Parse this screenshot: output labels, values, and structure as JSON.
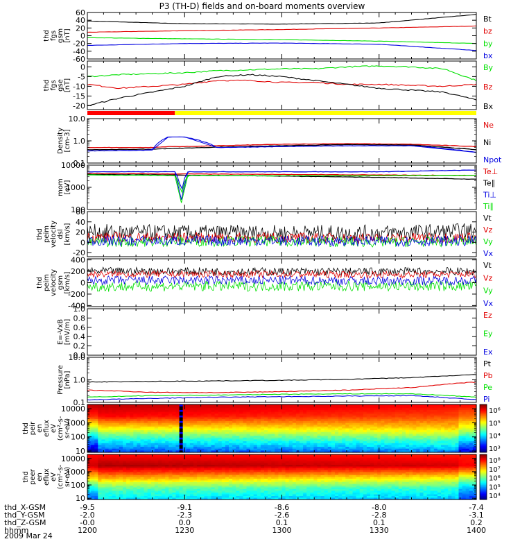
{
  "title": "P3 (TH-D) fields and on-board moments overview",
  "date_label": "2009 Mar 24",
  "colors": {
    "black": "#000000",
    "red": "#e00000",
    "green": "#00e000",
    "blue": "#0000e0",
    "yellow": "#ffff00",
    "ramp_red": "#ff0000"
  },
  "chart_data": [
    {
      "id": "fgs_gsm",
      "type": "line",
      "ylabel": [
        "thd",
        "fgs",
        "gsm",
        "[nT]"
      ],
      "ylim": [
        -60,
        60
      ],
      "yticks": [
        "60",
        "40",
        "20",
        "0",
        "-20",
        "-40",
        "-60"
      ],
      "ytick_values": [
        60,
        40,
        20,
        0,
        -20,
        -40,
        -60
      ],
      "x": [
        0,
        30,
        60,
        90,
        120
      ],
      "series": [
        {
          "name": "Bt",
          "color": "#000000",
          "values": [
            38,
            31,
            30,
            33,
            55
          ]
        },
        {
          "name": "bz",
          "color": "#e00000",
          "values": [
            9,
            13,
            16,
            20,
            25
          ]
        },
        {
          "name": "by",
          "color": "#00e000",
          "values": [
            -5,
            -8,
            -10,
            -14,
            -20
          ]
        },
        {
          "name": "bx",
          "color": "#0000e0",
          "values": [
            -25,
            -20,
            -19,
            -22,
            -38
          ]
        }
      ]
    },
    {
      "id": "fgs_gse",
      "type": "line",
      "ylabel": [
        "thd",
        "fgs",
        "gse",
        "[nT]"
      ],
      "ylim": [
        -22,
        3
      ],
      "yticks": [
        "0",
        "-5",
        "-10",
        "-15",
        "-20"
      ],
      "ytick_values": [
        0,
        -5,
        -10,
        -15,
        -20
      ],
      "x": [
        0,
        10,
        20,
        30,
        40,
        50,
        60,
        70,
        80,
        90,
        100,
        110,
        120
      ],
      "series": [
        {
          "name": "By",
          "color": "#00e000",
          "values": [
            -5,
            -4,
            -3.5,
            -3,
            -2,
            -1.5,
            -1,
            -1,
            0,
            0.5,
            0,
            -1,
            -7
          ]
        },
        {
          "name": "Bz",
          "color": "#e00000",
          "values": [
            -9,
            -11,
            -10,
            -9,
            -7,
            -7,
            -8,
            -8,
            -9,
            -9,
            -9.5,
            -10,
            -9
          ]
        },
        {
          "name": "Bx",
          "color": "#000000",
          "values": [
            -20,
            -16,
            -13,
            -10,
            -5,
            -4,
            -5,
            -7,
            -9,
            -11,
            -12,
            -13,
            -17
          ]
        }
      ]
    },
    {
      "id": "density",
      "type": "line",
      "ylog": true,
      "ylabel": [
        "Density",
        "[cm-3]"
      ],
      "ylim": [
        0.1,
        10
      ],
      "yticks": [
        "10.0",
        "1.0",
        "0.1"
      ],
      "ytick_values": [
        10,
        1,
        0.1
      ],
      "x": [
        0,
        20,
        25,
        30,
        40,
        60,
        80,
        100,
        120
      ],
      "series": [
        {
          "name": "Ne",
          "color": "#e00000",
          "values": [
            0.5,
            0.5,
            0.55,
            0.55,
            0.6,
            0.7,
            0.75,
            0.7,
            0.55
          ]
        },
        {
          "name": "Ni",
          "color": "#000000",
          "values": [
            0.4,
            0.42,
            0.45,
            0.47,
            0.52,
            0.6,
            0.68,
            0.65,
            0.4
          ]
        },
        {
          "name": "Npot",
          "color": "#0000e0",
          "values": [
            0.35,
            0.38,
            1.5,
            1.5,
            0.5,
            0.55,
            0.6,
            0.6,
            0.3
          ]
        }
      ]
    },
    {
      "id": "temperature",
      "type": "line",
      "ylog": true,
      "ylabel": [
        "mom",
        "[eV]"
      ],
      "ylim": [
        100,
        10000
      ],
      "yticks": [
        "10000",
        "1000",
        "100"
      ],
      "ytick_values": [
        10000,
        1000,
        100
      ],
      "x": [
        0,
        27,
        29,
        31,
        60,
        90,
        120
      ],
      "series": [
        {
          "name": "Te⊥",
          "color": "#e00000",
          "values": [
            4200,
            4000,
            4000,
            4000,
            3800,
            3600,
            3400
          ]
        },
        {
          "name": "Te∥",
          "color": "#000000",
          "values": [
            3800,
            3600,
            3600,
            3500,
            3200,
            2800,
            2300
          ]
        },
        {
          "name": "Ti⊥",
          "color": "#0000e0",
          "values": [
            5000,
            5000,
            280,
            5000,
            5000,
            5000,
            6000
          ]
        },
        {
          "name": "Ti∥",
          "color": "#00e000",
          "values": [
            3600,
            3400,
            200,
            3400,
            3300,
            3300,
            3500
          ]
        }
      ]
    },
    {
      "id": "peim_dsl",
      "type": "line",
      "noisy": true,
      "ylabel": [
        "thd",
        "peim",
        "velocity",
        "dsl",
        "[km/s]"
      ],
      "ylim": [
        -28,
        60
      ],
      "yticks": [
        "60",
        "40",
        "20",
        "0",
        "-20"
      ],
      "ytick_values": [
        60,
        40,
        20,
        0,
        -20
      ],
      "x": [
        0,
        30,
        60,
        90,
        120
      ],
      "series": [
        {
          "name": "Vt",
          "color": "#000000",
          "values": [
            20,
            18,
            18,
            18,
            22
          ],
          "spread": 16
        },
        {
          "name": "Vz",
          "color": "#e00000",
          "values": [
            10,
            9,
            9,
            8,
            10
          ],
          "spread": 10
        },
        {
          "name": "Vy",
          "color": "#00e000",
          "values": [
            0,
            2,
            2,
            0,
            2
          ],
          "spread": 10
        },
        {
          "name": "Vx",
          "color": "#0000e0",
          "values": [
            3,
            3,
            3,
            2,
            3
          ],
          "spread": 10
        }
      ]
    },
    {
      "id": "peim_gsm",
      "type": "line",
      "noisy": true,
      "ylabel": [
        "thd",
        "peim",
        "velocity",
        "gsm",
        "[km/s]"
      ],
      "ylim": [
        -420,
        420
      ],
      "yticks": [
        "400",
        "200",
        "0",
        "-200",
        "-400"
      ],
      "ytick_values": [
        400,
        200,
        0,
        -200,
        -400
      ],
      "x": [
        0,
        30,
        60,
        90,
        120
      ],
      "series": [
        {
          "name": "Vt",
          "color": "#000000",
          "values": [
            200,
            200,
            195,
            195,
            200
          ],
          "spread": 70
        },
        {
          "name": "Vz",
          "color": "#e00000",
          "values": [
            150,
            150,
            150,
            140,
            150
          ],
          "spread": 60
        },
        {
          "name": "Vy",
          "color": "#00e000",
          "values": [
            -70,
            -60,
            -60,
            -60,
            -60
          ],
          "spread": 90
        },
        {
          "name": "Vx",
          "color": "#0000e0",
          "values": [
            40,
            40,
            40,
            30,
            40
          ],
          "spread": 80
        }
      ]
    },
    {
      "id": "efield",
      "type": "line",
      "ylabel": [
        "E=-VxB",
        "[mV/m]"
      ],
      "ylim": [
        0,
        1
      ],
      "yticks": [
        "1.0",
        "0.8",
        "0.6",
        "0.4",
        "0.2",
        "0.0"
      ],
      "ytick_values": [
        1.0,
        0.8,
        0.6,
        0.4,
        0.2,
        0.0
      ],
      "x": [],
      "series": [
        {
          "name": "Ez",
          "color": "#e00000",
          "values": []
        },
        {
          "name": "Ey",
          "color": "#00e000",
          "values": []
        },
        {
          "name": "Ex",
          "color": "#0000e0",
          "values": []
        }
      ]
    },
    {
      "id": "pressure",
      "type": "line",
      "ylog": true,
      "ylabel": [
        "Pressure",
        "[nPa]"
      ],
      "ylim": [
        0.1,
        10
      ],
      "yticks": [
        "10.0",
        "1.0",
        "0.1"
      ],
      "ytick_values": [
        10,
        1,
        0.1
      ],
      "x": [
        0,
        20,
        40,
        60,
        80,
        100,
        120
      ],
      "series": [
        {
          "name": "Pt",
          "color": "#000000",
          "values": [
            0.8,
            0.85,
            0.9,
            0.95,
            1.05,
            1.25,
            1.7
          ]
        },
        {
          "name": "Pb",
          "color": "#e00000",
          "values": [
            0.35,
            0.28,
            0.27,
            0.3,
            0.35,
            0.45,
            0.8
          ]
        },
        {
          "name": "Pe",
          "color": "#00e000",
          "values": [
            0.17,
            0.2,
            0.21,
            0.23,
            0.24,
            0.24,
            0.17
          ]
        },
        {
          "name": "Pi",
          "color": "#0000e0",
          "values": [
            0.13,
            0.15,
            0.17,
            0.18,
            0.19,
            0.2,
            0.13
          ]
        }
      ]
    },
    {
      "id": "peir_spec",
      "type": "heatmap",
      "ylabel": [
        "thd",
        "peir",
        "en",
        "eflux",
        "eV",
        "(cm²-s-",
        "sr-eV)"
      ],
      "ylim": [
        8,
        20000
      ],
      "yticks": [
        "10000",
        "1000",
        "100",
        "10"
      ],
      "ytick_values": [
        10000,
        1000,
        100,
        10
      ],
      "colorbar_ticks": [
        "10⁶",
        "10⁵",
        "10⁴",
        "10³"
      ],
      "colorbar_range_log": [
        2.5,
        6.5
      ],
      "band_log": [
        [
          6.3,
          6.0,
          5.0,
          4.0,
          3.2
        ],
        [
          6.0,
          5.7,
          5.2,
          4.3,
          3.5
        ]
      ],
      "edge_x": [
        0,
        120
      ],
      "dropout_x": [
        28,
        29
      ]
    },
    {
      "id": "peer_spec",
      "type": "heatmap",
      "ylabel": [
        "thd",
        "peer",
        "en",
        "eflux",
        "eV",
        "(cm²-s-",
        "sr-eV)"
      ],
      "ylim": [
        8,
        20000
      ],
      "yticks": [
        "10000",
        "1000",
        "100",
        "10"
      ],
      "ytick_values": [
        10000,
        1000,
        100,
        10
      ],
      "colorbar_ticks": [
        "10⁸",
        "10⁷",
        "10⁶",
        "10⁵",
        "10⁴"
      ],
      "colorbar_range_log": [
        3.6,
        8.2
      ],
      "band_log": [
        [
          7.6,
          8.0,
          7.0,
          5.8,
          5.2
        ],
        [
          7.5,
          7.8,
          6.6,
          5.5,
          5.0
        ]
      ],
      "edge_x": [
        0,
        120
      ]
    }
  ],
  "status_bar": {
    "segments": [
      {
        "x": [
          0,
          27
        ],
        "color": "#ff0000"
      },
      {
        "x": [
          27,
          120
        ],
        "color": "#ffff00"
      }
    ]
  },
  "x_axis": {
    "ticks": [
      0,
      30,
      60,
      90,
      120
    ],
    "rows": [
      {
        "label": "thd_X-GSM",
        "values": [
          "-9.5",
          "-9.1",
          "-8.6",
          "-8.0",
          "-7.4"
        ]
      },
      {
        "label": "thd_Y-GSM",
        "values": [
          "-2.0",
          "-2.3",
          "-2.6",
          "-2.8",
          "-3.1"
        ]
      },
      {
        "label": "thd_Z-GSM",
        "values": [
          "-0.0",
          "0.0",
          "0.1",
          "0.1",
          "0.2"
        ]
      },
      {
        "label": "hhmm",
        "values": [
          "1200",
          "1230",
          "1300",
          "1330",
          "1400"
        ]
      }
    ]
  }
}
